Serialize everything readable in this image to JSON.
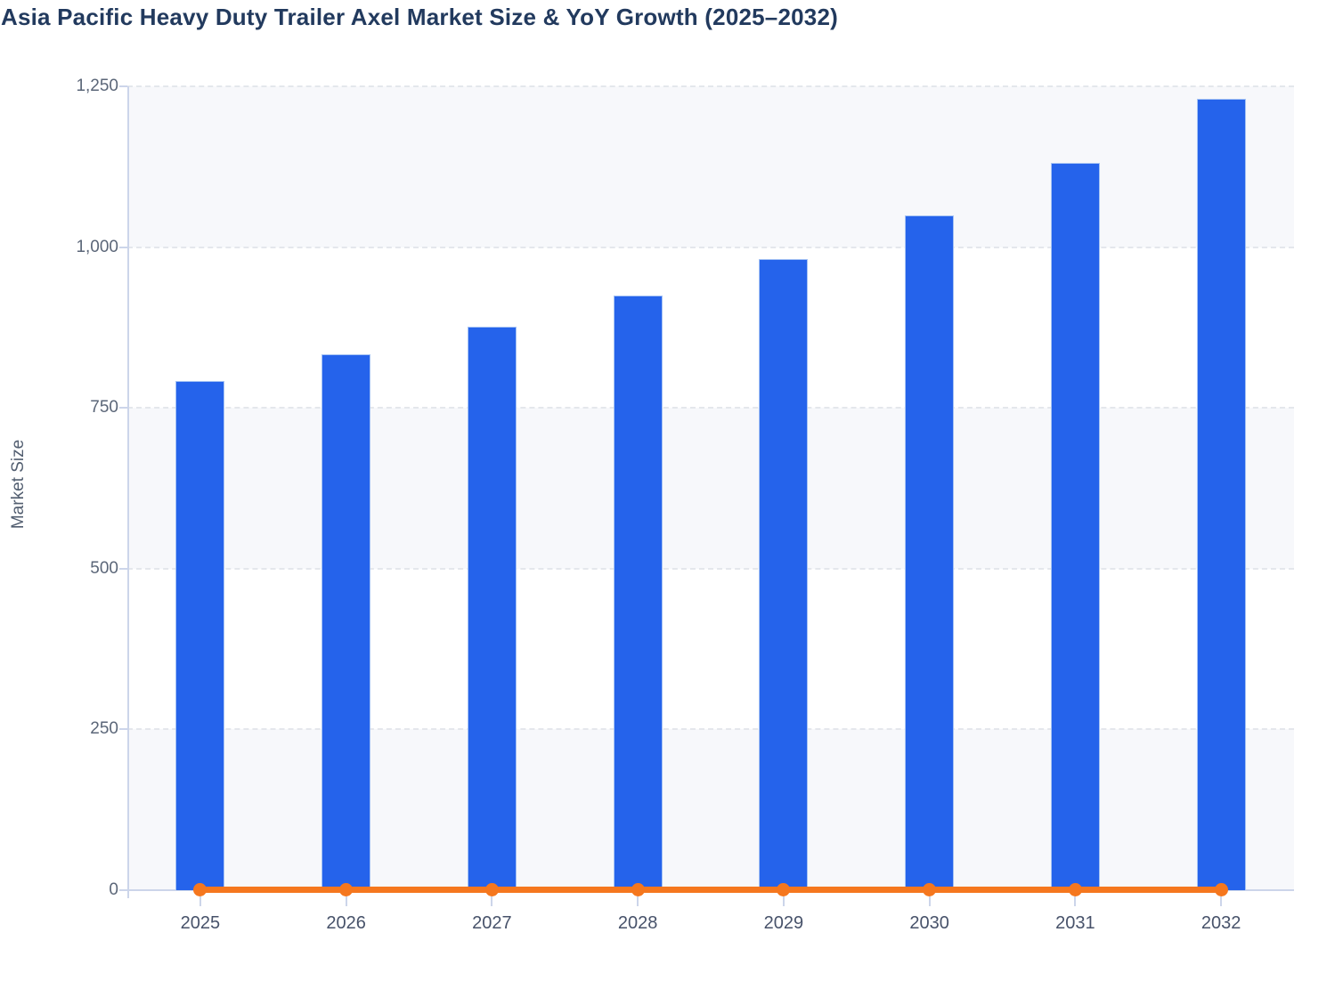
{
  "page": {
    "title": "Asia Pacific Heavy Duty Trailer Axel Market Size & YoY Growth (2025–2032)"
  },
  "chart_data": {
    "type": "bar",
    "title": "Asia Pacific Heavy Duty Trailer Axel Market Size & YoY Growth (2025–2032)",
    "categories": [
      "2025",
      "2026",
      "2027",
      "2028",
      "2029",
      "2030",
      "2031",
      "2032"
    ],
    "series": [
      {
        "name": "Market Size",
        "type": "bar",
        "values": [
          792,
          833,
          876,
          925,
          982,
          1049,
          1131,
          1231
        ],
        "color": "#2563eb"
      },
      {
        "name": "YoY Growth",
        "type": "line",
        "values_percent_approx": [
          0,
          5.2,
          5.2,
          5.6,
          6.2,
          6.8,
          7.8,
          8.8
        ],
        "color": "#f5771e",
        "note": "plotted against the left axis, so it renders flush with the 0 baseline with a round marker at each year"
      }
    ],
    "xlabel": "",
    "ylabel": "Market Size",
    "ylim": [
      0,
      1250
    ],
    "y_ticks": [
      0,
      250,
      500,
      750,
      1000,
      1250
    ],
    "y_tick_labels": [
      "0",
      "250",
      "500",
      "750",
      "1,000",
      "1,250"
    ],
    "grid": "horizontal dashed gridlines",
    "legend_position": "none",
    "plot_band_colors_bottom_up": [
      "#f7f8fb",
      "#ffffff",
      "#f7f8fb",
      "#ffffff",
      "#f7f8fb"
    ],
    "axis_color": "#ccd5ea",
    "gridline_color": "#e4e7ec",
    "title_color": "#223a5e",
    "tick_label_color": "#5b6678"
  }
}
